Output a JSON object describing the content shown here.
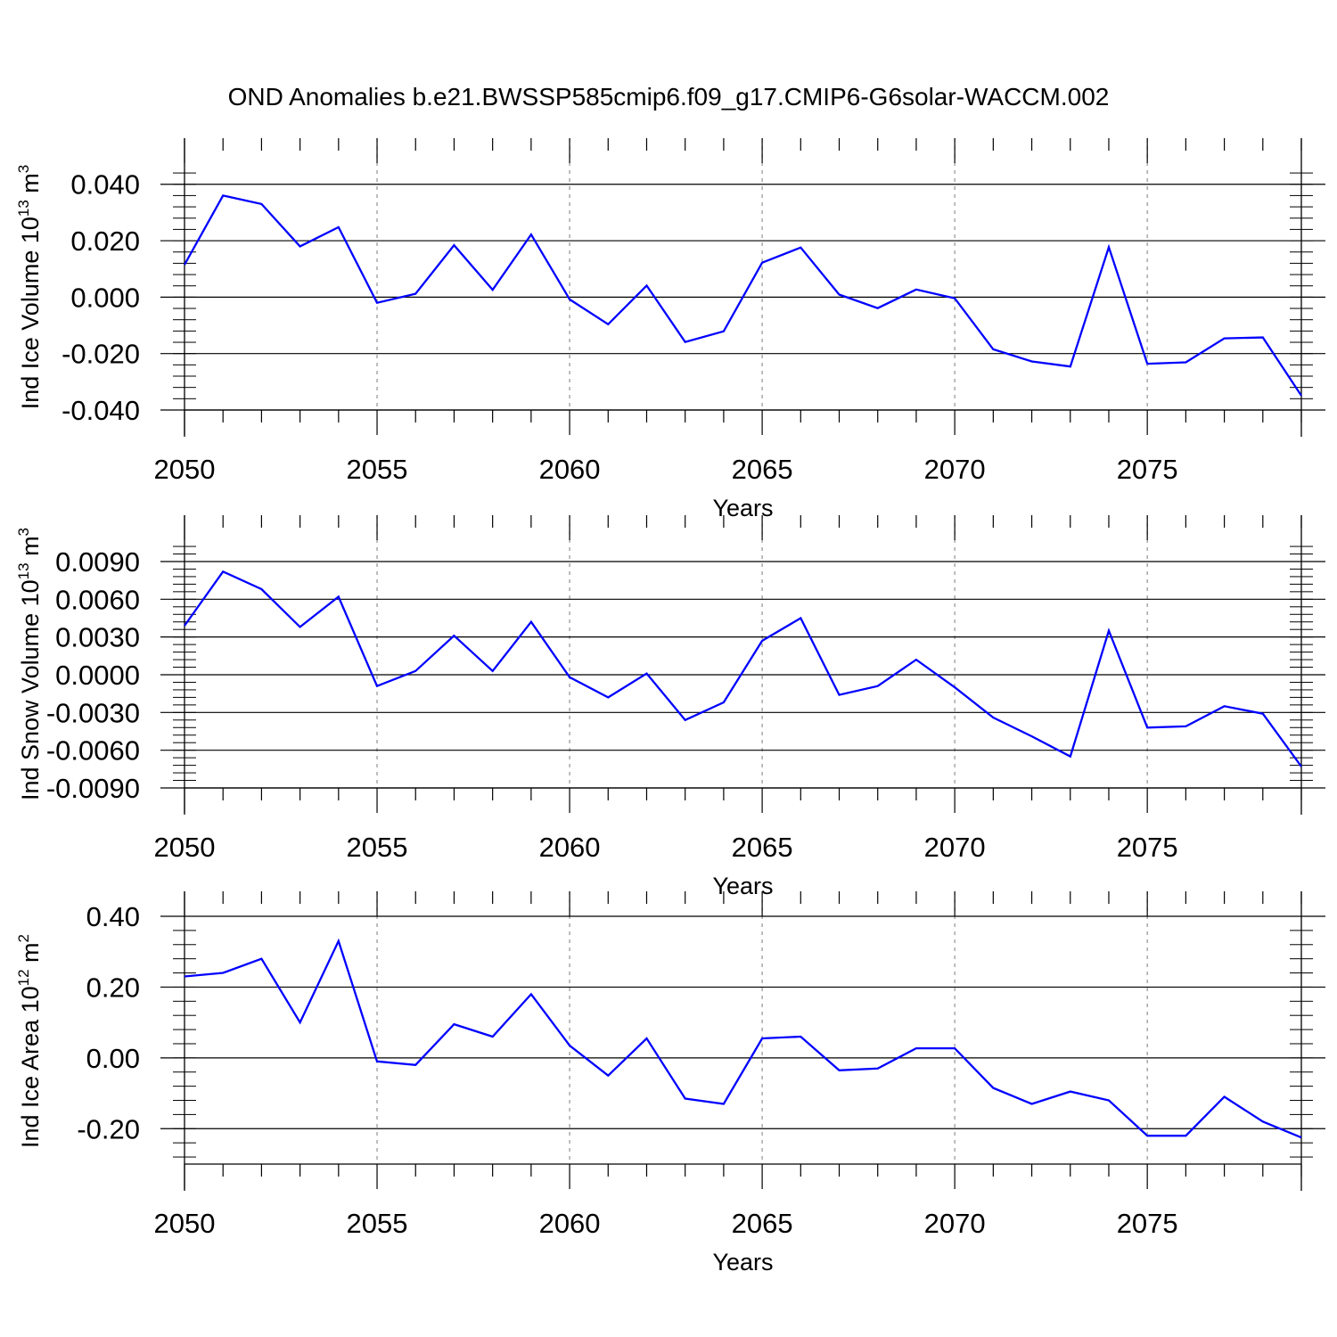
{
  "title": "OND Anomalies b.e21.BWSSP585cmip6.f09_g17.CMIP6-G6solar-WACCM.002",
  "colors": {
    "line": "#0000ff",
    "axis": "#000000",
    "gridline": "#9a9a9a",
    "background": "#ffffff"
  },
  "chart_data": [
    {
      "type": "line",
      "xlabel": "Years",
      "ylabel": "Ind Ice Volume 10",
      "ylabel_exponent": "13",
      "ylabel_unit": " m",
      "ylabel_unit_exponent": "3",
      "xlim": [
        2050,
        2079
      ],
      "ylim": [
        -0.04,
        0.0475
      ],
      "x_ticks": [
        2050,
        2055,
        2060,
        2065,
        2070,
        2075
      ],
      "x_tick_labels": [
        "2050",
        "2055",
        "2060",
        "2065",
        "2070",
        "2075"
      ],
      "y_ticks": [
        0.04,
        0.02,
        0.0,
        -0.02,
        -0.04
      ],
      "y_tick_labels": [
        "0.040",
        "0.020",
        "0.000",
        "-0.020",
        "-0.040"
      ],
      "vertical_reference_lines": [
        2055,
        2060,
        2065,
        2070,
        2075
      ],
      "x": [
        2050,
        2051,
        2052,
        2053,
        2054,
        2055,
        2056,
        2057,
        2058,
        2059,
        2060,
        2061,
        2062,
        2063,
        2064,
        2065,
        2066,
        2067,
        2068,
        2069,
        2070,
        2071,
        2072,
        2073,
        2074,
        2075,
        2076,
        2077,
        2078,
        2079
      ],
      "values": [
        0.0115,
        0.036,
        0.033,
        0.018,
        0.0248,
        -0.002,
        0.0012,
        0.0184,
        0.0026,
        0.0222,
        -0.0008,
        -0.0096,
        0.0041,
        -0.0159,
        -0.0121,
        0.0122,
        0.0176,
        0.0009,
        -0.0039,
        0.0027,
        -0.0004,
        -0.0185,
        -0.0228,
        -0.0246,
        0.0177,
        -0.0236,
        -0.0231,
        -0.0146,
        -0.0143,
        -0.0349
      ]
    },
    {
      "type": "line",
      "xlabel": "Years",
      "ylabel": "Ind Snow Volume 10",
      "ylabel_exponent": "13",
      "ylabel_unit": " m",
      "ylabel_unit_exponent": "3",
      "xlim": [
        2050,
        2079
      ],
      "ylim": [
        -0.009,
        0.0107
      ],
      "x_ticks": [
        2050,
        2055,
        2060,
        2065,
        2070,
        2075
      ],
      "x_tick_labels": [
        "2050",
        "2055",
        "2060",
        "2065",
        "2070",
        "2075"
      ],
      "y_ticks": [
        0.009,
        0.006,
        0.003,
        0.0,
        -0.003,
        -0.006,
        -0.009
      ],
      "y_tick_labels": [
        "0.0090",
        "0.0060",
        "0.0030",
        "0.0000",
        "-0.0030",
        "-0.0060",
        "-0.0090"
      ],
      "vertical_reference_lines": [
        2055,
        2060,
        2065,
        2070,
        2075
      ],
      "x": [
        2050,
        2051,
        2052,
        2053,
        2054,
        2055,
        2056,
        2057,
        2058,
        2059,
        2060,
        2061,
        2062,
        2063,
        2064,
        2065,
        2066,
        2067,
        2068,
        2069,
        2070,
        2071,
        2072,
        2073,
        2074,
        2075,
        2076,
        2077,
        2078,
        2079
      ],
      "values": [
        0.0039,
        0.0082,
        0.0068,
        0.0038,
        0.0062,
        -0.0009,
        0.0003,
        0.0031,
        0.0003,
        0.0042,
        -0.0002,
        -0.0018,
        0.0001,
        -0.0036,
        -0.0022,
        0.0027,
        0.0045,
        -0.0016,
        -0.0009,
        0.0012,
        -0.001,
        -0.0034,
        -0.0049,
        -0.0065,
        0.0035,
        -0.0042,
        -0.0041,
        -0.0025,
        -0.0031,
        -0.0073
      ]
    },
    {
      "type": "line",
      "xlabel": "Years",
      "ylabel": "Ind Ice Area 10",
      "ylabel_exponent": "12",
      "ylabel_unit": " m",
      "ylabel_unit_exponent": "2",
      "xlim": [
        2050,
        2079
      ],
      "ylim": [
        -0.3,
        0.4
      ],
      "x_ticks": [
        2050,
        2055,
        2060,
        2065,
        2070,
        2075
      ],
      "x_tick_labels": [
        "2050",
        "2055",
        "2060",
        "2065",
        "2070",
        "2075"
      ],
      "y_ticks": [
        0.4,
        0.2,
        0.0,
        -0.2
      ],
      "y_tick_labels": [
        "0.40",
        "0.20",
        "0.00",
        "-0.20"
      ],
      "vertical_reference_lines": [
        2055,
        2060,
        2065,
        2070,
        2075
      ],
      "x": [
        2050,
        2051,
        2052,
        2053,
        2054,
        2055,
        2056,
        2057,
        2058,
        2059,
        2060,
        2061,
        2062,
        2063,
        2064,
        2065,
        2066,
        2067,
        2068,
        2069,
        2070,
        2071,
        2072,
        2073,
        2074,
        2075,
        2076,
        2077,
        2078,
        2079
      ],
      "values": [
        0.23,
        0.24,
        0.28,
        0.1,
        0.33,
        -0.01,
        -0.02,
        0.095,
        0.06,
        0.18,
        0.035,
        -0.05,
        0.055,
        -0.115,
        -0.13,
        0.055,
        0.06,
        -0.035,
        -0.03,
        0.027,
        0.027,
        -0.085,
        -0.13,
        -0.095,
        -0.12,
        -0.22,
        -0.22,
        -0.11,
        -0.18,
        -0.225
      ]
    }
  ]
}
